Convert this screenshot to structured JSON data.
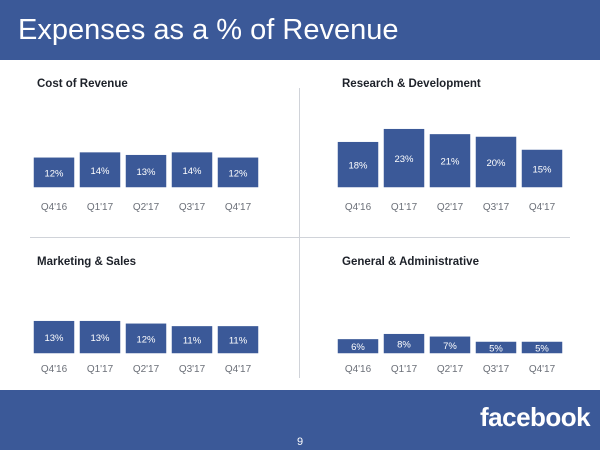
{
  "header": {
    "title": "Expenses as a % of Revenue"
  },
  "footer": {
    "logo_text": "facebook",
    "page_number": "9"
  },
  "colors": {
    "brand": "#3b5998",
    "bar": "#3b5998",
    "bar_border": "#ffffff"
  },
  "chart_data": [
    {
      "type": "bar",
      "title": "Cost of Revenue",
      "categories": [
        "Q4'16",
        "Q1'17",
        "Q2'17",
        "Q3'17",
        "Q4'17"
      ],
      "values": [
        12,
        14,
        13,
        14,
        12
      ],
      "labels": [
        "12%",
        "14%",
        "13%",
        "14%",
        "12%"
      ],
      "ylim": [
        0,
        26
      ]
    },
    {
      "type": "bar",
      "title": "Research & Development",
      "categories": [
        "Q4'16",
        "Q1'17",
        "Q2'17",
        "Q3'17",
        "Q4'17"
      ],
      "values": [
        18,
        23,
        21,
        20,
        15
      ],
      "labels": [
        "18%",
        "23%",
        "21%",
        "20%",
        "15%"
      ],
      "ylim": [
        0,
        26
      ]
    },
    {
      "type": "bar",
      "title": "Marketing & Sales",
      "categories": [
        "Q4'16",
        "Q1'17",
        "Q2'17",
        "Q3'17",
        "Q4'17"
      ],
      "values": [
        13,
        13,
        12,
        11,
        11
      ],
      "labels": [
        "13%",
        "13%",
        "12%",
        "11%",
        "11%"
      ],
      "ylim": [
        0,
        26
      ]
    },
    {
      "type": "bar",
      "title": "General & Administrative",
      "categories": [
        "Q4'16",
        "Q1'17",
        "Q2'17",
        "Q3'17",
        "Q4'17"
      ],
      "values": [
        6,
        8,
        7,
        5,
        5
      ],
      "labels": [
        "6%",
        "8%",
        "7%",
        "5%",
        "5%"
      ],
      "ylim": [
        0,
        26
      ]
    }
  ]
}
